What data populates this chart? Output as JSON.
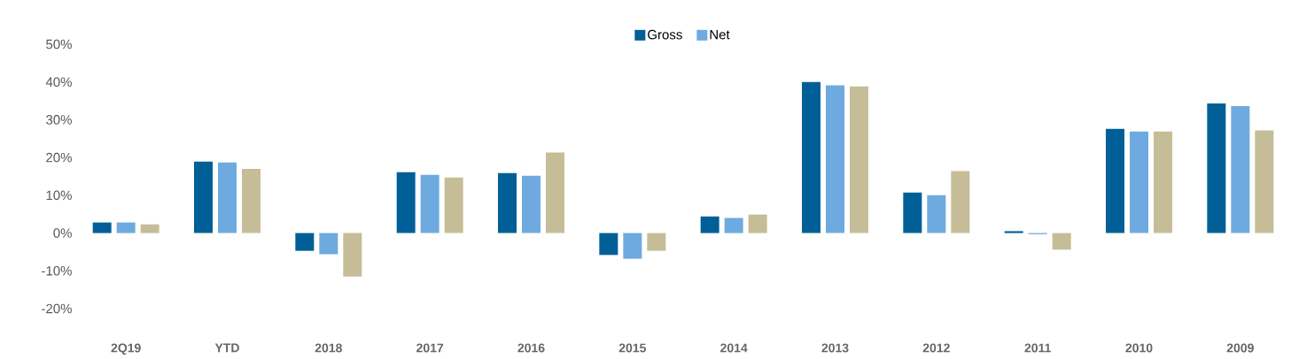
{
  "chart_data": {
    "type": "bar",
    "categories": [
      "2Q19",
      "YTD",
      "2018",
      "2017",
      "2016",
      "2015",
      "2014",
      "2013",
      "2012",
      "2011",
      "2010",
      "2009"
    ],
    "series": [
      {
        "name": "Gross",
        "color": "#005f96",
        "values": [
          2.8,
          18.9,
          -4.7,
          16.1,
          15.9,
          -5.8,
          4.4,
          40.0,
          10.7,
          0.5,
          27.6,
          34.3
        ]
      },
      {
        "name": "Net",
        "color": "#6eaae0",
        "values": [
          2.8,
          18.7,
          -5.6,
          15.4,
          15.2,
          -6.8,
          4.0,
          39.1,
          10.0,
          -0.3,
          26.9,
          33.6
        ]
      },
      {
        "color": "#c5bd97",
        "values": [
          2.3,
          17.0,
          -11.5,
          14.7,
          21.3,
          -4.7,
          4.9,
          38.8,
          16.4,
          -4.4,
          26.9,
          27.2
        ]
      }
    ],
    "ylim": [
      -20,
      50
    ],
    "yticks": [
      {
        "value": -20,
        "label": "-20%"
      },
      {
        "value": -10,
        "label": "-10%"
      },
      {
        "value": 0,
        "label": "0%"
      },
      {
        "value": 10,
        "label": "10%"
      },
      {
        "value": 20,
        "label": "20%"
      },
      {
        "value": 30,
        "label": "30%"
      },
      {
        "value": 40,
        "label": "40%"
      },
      {
        "value": 50,
        "label": "50%"
      }
    ],
    "grid": false,
    "legend": "top"
  }
}
